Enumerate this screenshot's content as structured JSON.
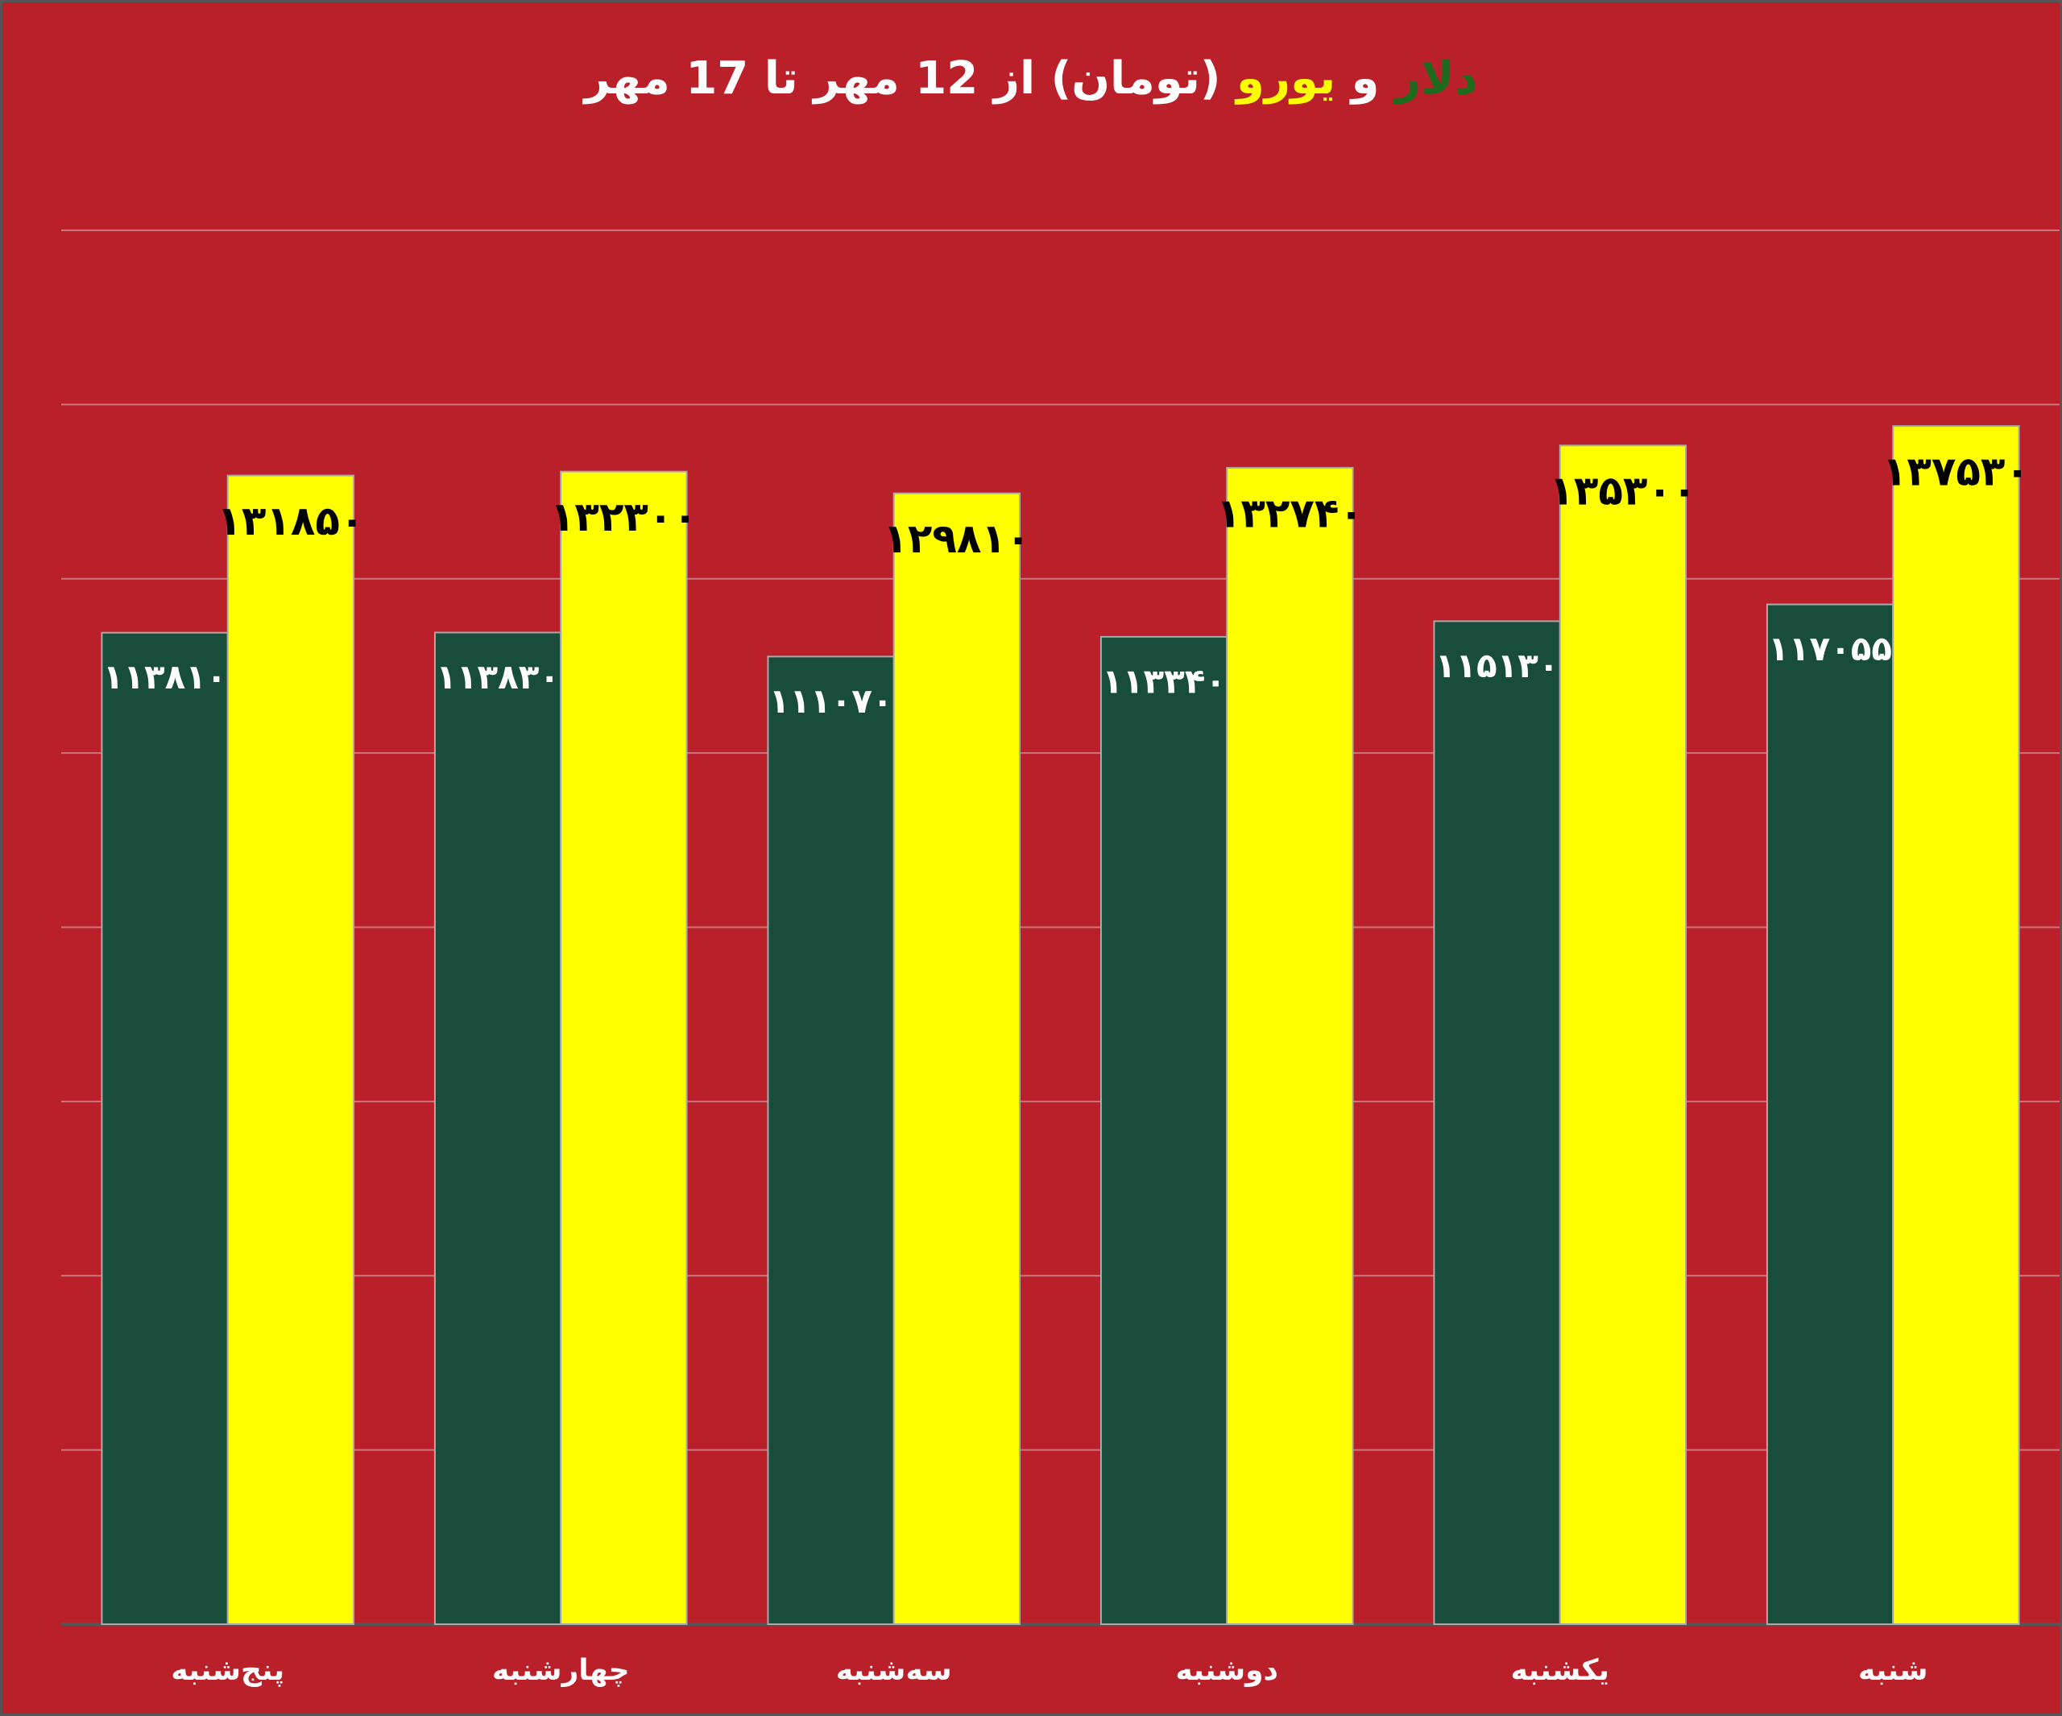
{
  "chart_data": {
    "type": "bar",
    "title": "(تومان) از 12 مهر تا 17 مهر",
    "title_connector": "و",
    "categories": [
      "پنج‌شنبه",
      "چهارشنبه",
      "سه‌شنبه",
      "دوشنبه",
      "یکشنبه",
      "شنبه"
    ],
    "series": [
      {
        "name": "دلار",
        "color": "#174d3a",
        "label_color": "#ffffff",
        "values": [
          113810,
          113830,
          111070,
          113340,
          115130,
          117055
        ],
        "value_labels": [
          "۱۱۳۸۱۰",
          "۱۱۳۸۳۰",
          "۱۱۱۰۷۰",
          "۱۱۳۳۴۰",
          "۱۱۵۱۳۰",
          "۱۱۷۰۵۵"
        ]
      },
      {
        "name": "یورو",
        "color": "#ffff00",
        "label_color": "#000000",
        "values": [
          131850,
          132300,
          129810,
          132740,
          135300,
          137530
        ],
        "value_labels": [
          "۱۳۱۸۵۰",
          "۱۳۲۳۰۰",
          "۱۲۹۸۱۰",
          "۱۳۲۷۴۰",
          "۱۳۵۳۰۰",
          "۱۳۷۵۳۰"
        ]
      }
    ],
    "ylim": [
      0,
      160000
    ],
    "yticks": [
      0,
      20000,
      40000,
      60000,
      80000,
      100000,
      120000,
      140000,
      160000
    ],
    "grid": true
  }
}
